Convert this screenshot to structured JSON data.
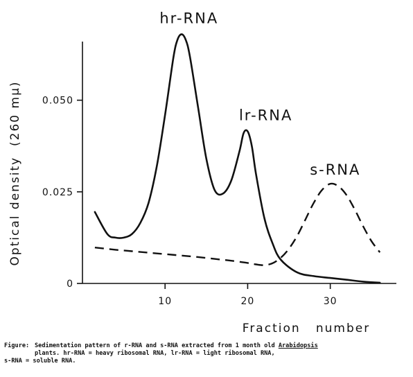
{
  "chart_data": {
    "type": "line",
    "xlabel": "Fraction   number",
    "ylabel": "Optical density  (260 mμ)",
    "xlim": [
      0,
      38
    ],
    "ylim": [
      0,
      0.066
    ],
    "xticks": [
      {
        "value": 10,
        "label": "10"
      },
      {
        "value": 20,
        "label": "20"
      },
      {
        "value": 30,
        "label": "30"
      }
    ],
    "yticks": [
      {
        "value": 0,
        "label": "0"
      },
      {
        "value": 0.025,
        "label": "0.025"
      },
      {
        "value": 0.05,
        "label": "0.050"
      }
    ],
    "grid": false,
    "series": [
      {
        "style": "solid",
        "x": [
          1.5,
          3,
          4,
          5,
          6,
          7,
          8,
          9,
          10,
          11,
          11.5,
          12,
          12.5,
          13,
          14,
          15,
          16,
          17,
          18,
          19,
          19.5,
          20,
          20.5,
          21,
          22,
          23,
          24,
          26,
          28,
          30,
          32,
          34,
          36
        ],
        "y": [
          0.0195,
          0.0135,
          0.0125,
          0.0125,
          0.0135,
          0.0165,
          0.022,
          0.032,
          0.046,
          0.0615,
          0.0665,
          0.068,
          0.0665,
          0.062,
          0.048,
          0.034,
          0.0255,
          0.0245,
          0.028,
          0.036,
          0.041,
          0.0415,
          0.0375,
          0.03,
          0.018,
          0.011,
          0.0065,
          0.003,
          0.002,
          0.0015,
          0.001,
          0.0005,
          0.0002
        ]
      },
      {
        "style": "dashed",
        "x": [
          1.5,
          4,
          6,
          8,
          10,
          12,
          14,
          16,
          18,
          20,
          21,
          22,
          23,
          24,
          25,
          26,
          27,
          28,
          29,
          30,
          31,
          32,
          33,
          34,
          35,
          36
        ],
        "y": [
          0.0098,
          0.0092,
          0.0088,
          0.0084,
          0.008,
          0.0076,
          0.0072,
          0.0067,
          0.0062,
          0.0056,
          0.0052,
          0.005,
          0.0055,
          0.007,
          0.0095,
          0.013,
          0.0175,
          0.022,
          0.0255,
          0.0272,
          0.0265,
          0.024,
          0.02,
          0.0155,
          0.0115,
          0.0085
        ]
      }
    ],
    "annotations": [
      {
        "text": "hr-RNA",
        "x": 12.9,
        "y": 0.071
      },
      {
        "text": "lr-RNA",
        "x": 22.2,
        "y": 0.0445
      },
      {
        "text": "s-RNA",
        "x": 30.6,
        "y": 0.0297
      }
    ]
  },
  "caption": {
    "prefix": "Figure:",
    "line1_start": "Sedimentation pattern of r-RNA and s-RNA extracted from 1 month old ",
    "genus": "Arabidopsis",
    "line2_start": "plants. hr-RNA = heavy ribosomal RNA, lr-RNA = light ribosomal RNA,",
    "line3": "s-RNA = soluble RNA."
  }
}
